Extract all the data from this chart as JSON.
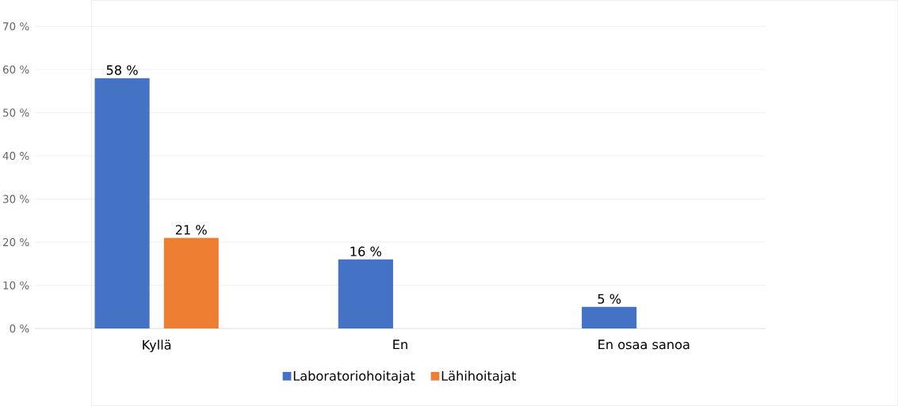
{
  "chart_data": {
    "type": "bar",
    "categories": [
      "Kyllä",
      "En",
      "En osaa sanoa"
    ],
    "series": [
      {
        "name": "Laboratoriohoitajat",
        "color": "#4472c4",
        "values": [
          58,
          16,
          5
        ],
        "value_labels": [
          "58 %",
          "16 %",
          "5 %"
        ]
      },
      {
        "name": "Lähihoitajat",
        "color": "#ed7d31",
        "values": [
          21,
          null,
          null
        ],
        "value_labels": [
          "21 %",
          null,
          null
        ]
      }
    ],
    "ylim": [
      0,
      70
    ],
    "yticks": [
      {
        "value": 0,
        "label": "0 %"
      },
      {
        "value": 10,
        "label": "10 %"
      },
      {
        "value": 20,
        "label": "20 %"
      },
      {
        "value": 30,
        "label": "30 %"
      },
      {
        "value": 40,
        "label": "40 %"
      },
      {
        "value": 50,
        "label": "50 %"
      },
      {
        "value": 60,
        "label": "60 %"
      },
      {
        "value": 70,
        "label": "70 %"
      }
    ],
    "grid": "y",
    "legend": "bottom"
  }
}
